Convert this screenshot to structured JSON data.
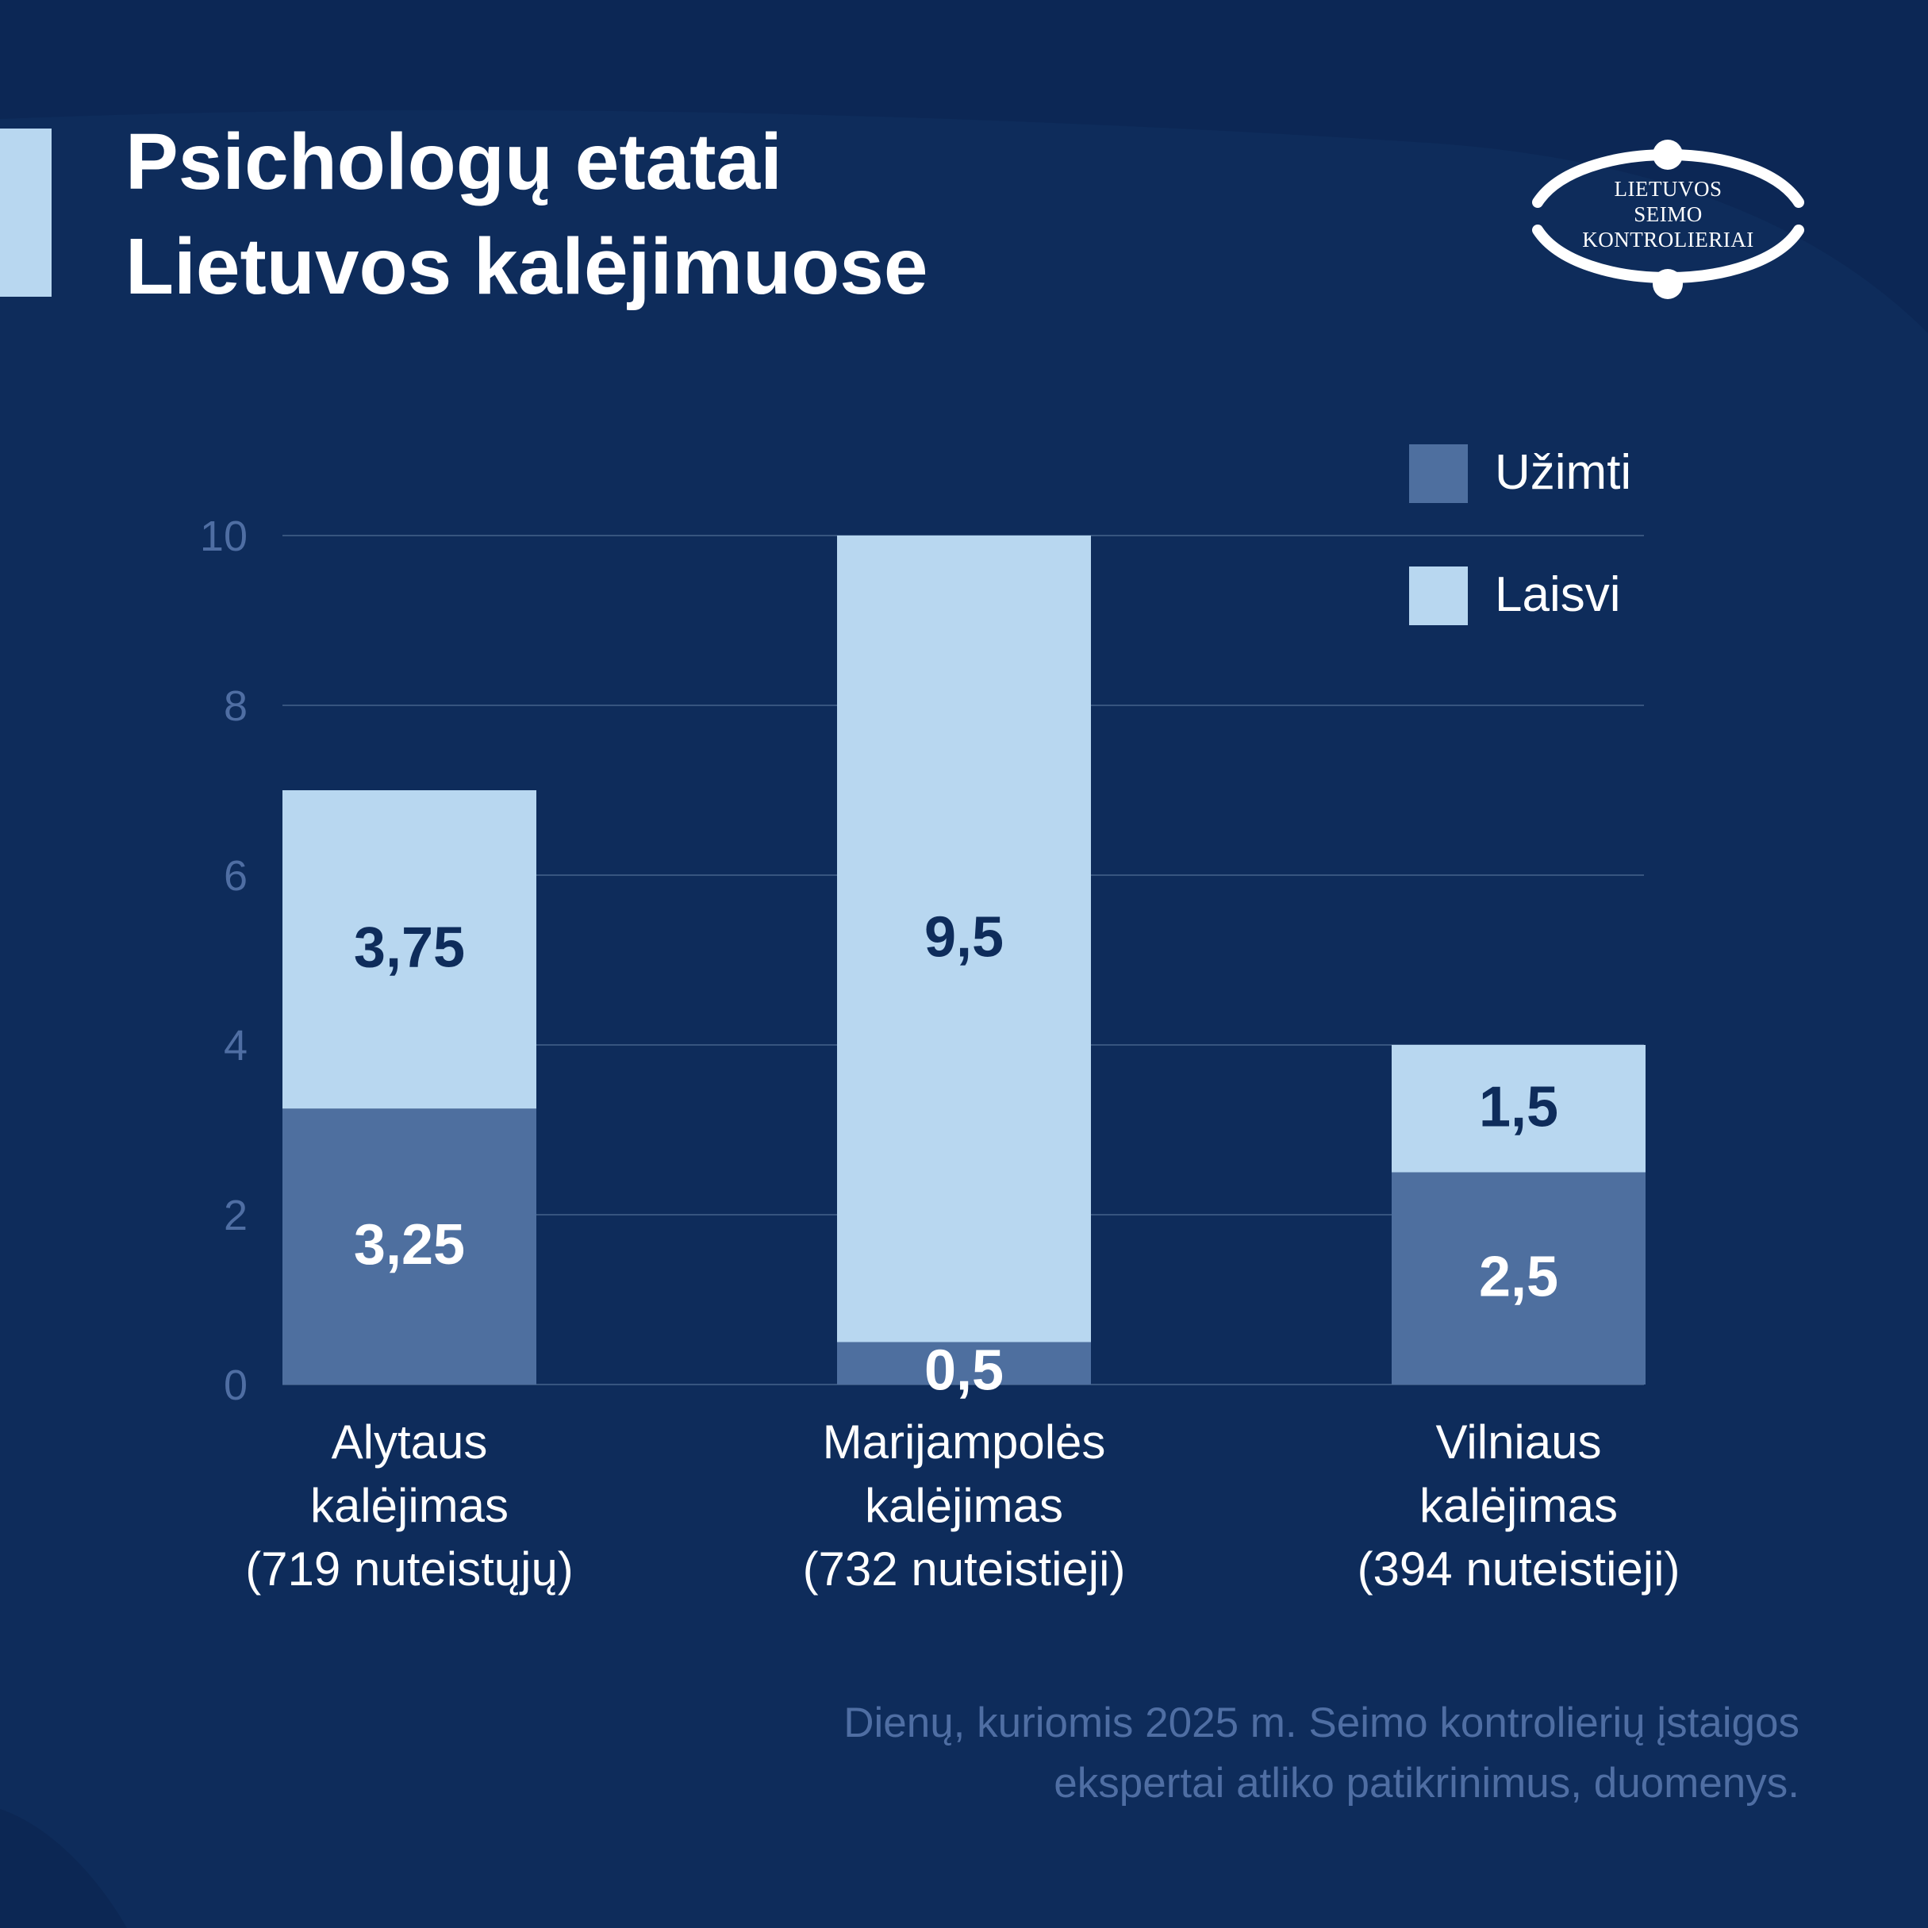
{
  "header": {
    "title_line1": "Psichologų etatai",
    "title_line2": "Lietuvos kalėjimuose"
  },
  "logo": {
    "line1": "LIETUVOS",
    "line2": "SEIMO",
    "line3": "KONTROLIERIAI"
  },
  "footer": {
    "source_line1": "Dienų, kuriomis 2025 m. Seimo kontrolierių įstaigos",
    "source_line2": "ekspertai atliko patikrinimus, duomenys."
  },
  "colors": {
    "background": "#0e2c5b",
    "occupied": "#4e6f9f",
    "vacant": "#b8d7f0",
    "grid": "#37557f",
    "tick_text": "#4f6ea3"
  },
  "chart_data": {
    "type": "bar",
    "stacked": true,
    "categories": [
      [
        "Alytaus",
        "kalėjimas",
        "(719 nuteistųjų)"
      ],
      [
        "Marijampolės",
        "kalėjimas",
        "(732 nuteistieji)"
      ],
      [
        "Vilniaus",
        "kalėjimas",
        "(394 nuteistieji)"
      ]
    ],
    "series": [
      {
        "name": "Užimti",
        "values": [
          3.25,
          0.5,
          2.5
        ],
        "labels": [
          "3,25",
          "0,5",
          "2,5"
        ],
        "color": "#4e6f9f",
        "label_color": "#ffffff"
      },
      {
        "name": "Laisvi",
        "values": [
          3.75,
          9.5,
          1.5
        ],
        "labels": [
          "3,75",
          "9,5",
          "1,5"
        ],
        "color": "#b8d7f0",
        "label_color": "#0e2c5b"
      }
    ],
    "ylim": [
      0,
      10
    ],
    "yticks": [
      0,
      2,
      4,
      6,
      8,
      10
    ],
    "grid": true,
    "legend_position": "top-right"
  }
}
